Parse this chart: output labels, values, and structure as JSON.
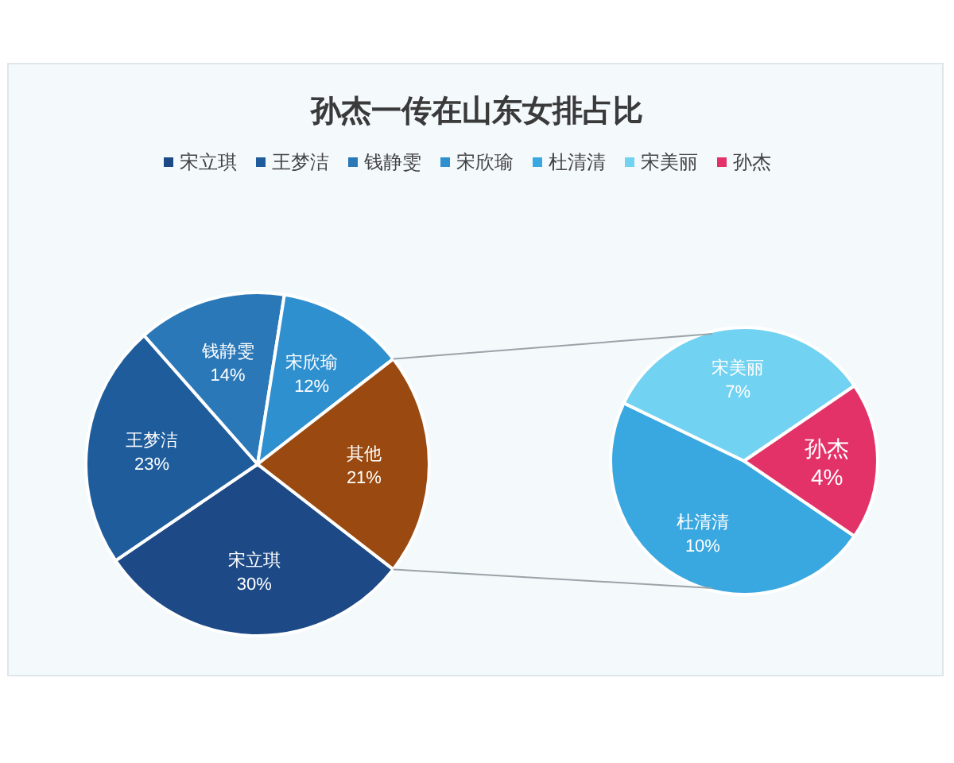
{
  "chart_data": [
    {
      "type": "pie",
      "title": "孙杰一传在山东女排占比",
      "legend": "top",
      "categories": [
        "宋立琪",
        "王梦洁",
        "钱静雯",
        "宋欣瑜",
        "其他"
      ],
      "values": [
        30,
        23,
        14,
        12,
        21
      ],
      "value_labels": [
        "30%",
        "23%",
        "14%",
        "12%",
        "21%"
      ],
      "colors": [
        "#1d4a86",
        "#1f5c9c",
        "#2a78b8",
        "#2f90d0",
        "#9a4a10"
      ]
    },
    {
      "type": "pie",
      "legend": "top",
      "categories": [
        "杜清清",
        "宋美丽",
        "孙杰"
      ],
      "values": [
        10,
        7,
        4
      ],
      "value_labels": [
        "10%",
        "7%",
        "4%"
      ],
      "colors": [
        "#3aa8e0",
        "#72d2f2",
        "#e23268"
      ]
    }
  ]
}
